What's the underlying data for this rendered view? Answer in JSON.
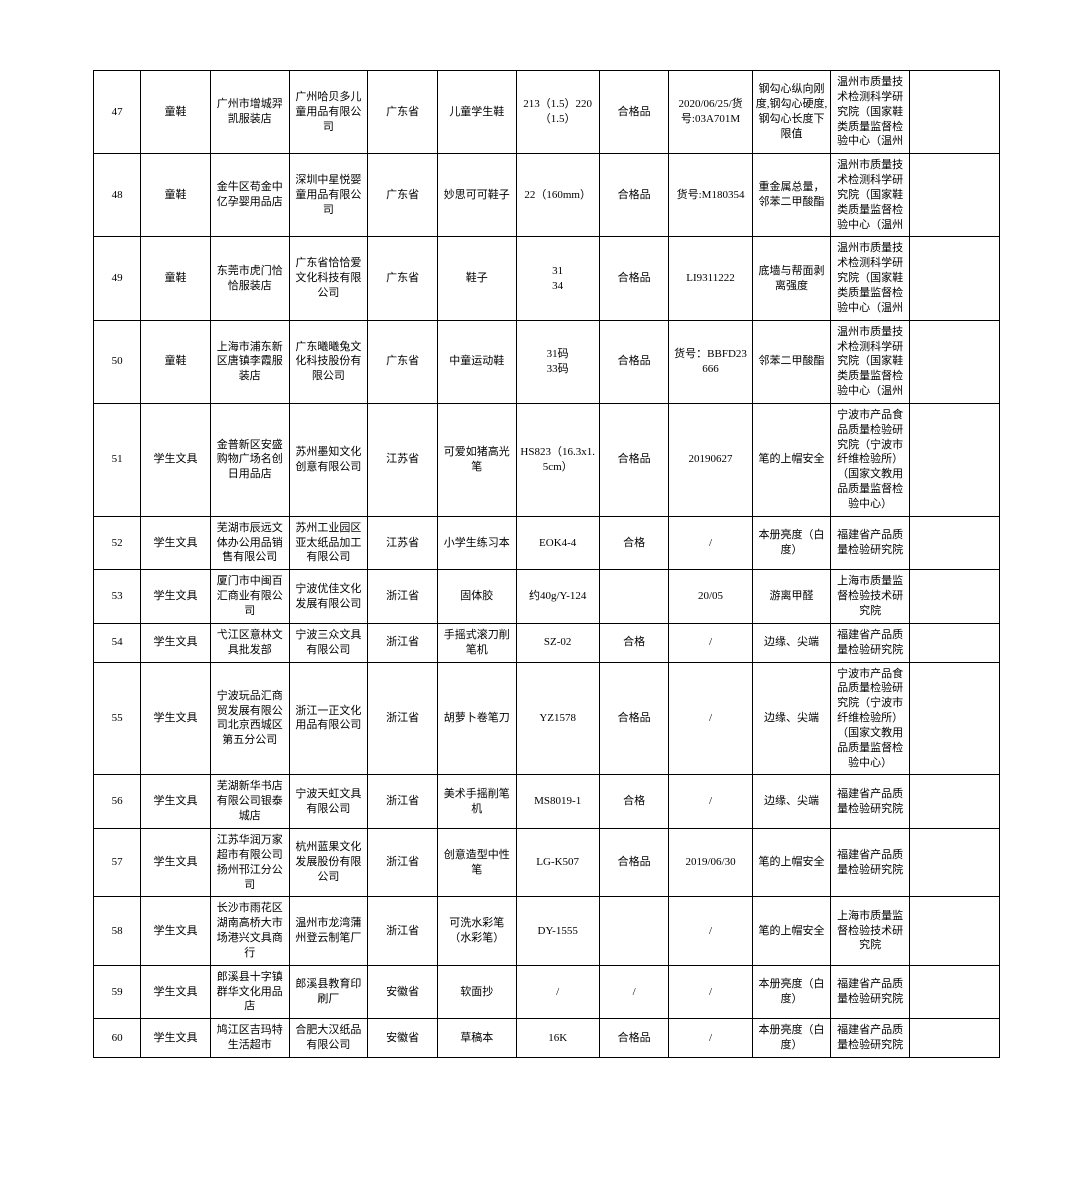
{
  "table": {
    "columns": 12,
    "border_color": "#000000",
    "background": "#ffffff",
    "font": "SimSun",
    "cell_font_size": 11,
    "rows": [
      {
        "no": "47",
        "cat": "童鞋",
        "seller": "广州市增城羿凯服装店",
        "maker": "广州哈贝多儿童用品有限公司",
        "prov": "广东省",
        "prod": "儿童学生鞋",
        "spec": "213（1.5）220（1.5）",
        "grade": "合格品",
        "batch": "2020/06/25/货号:03A701M",
        "item": "钢勾心纵向刚度,钢勾心硬度,钢勾心长度下限值",
        "lab": "温州市质量技术检测科学研究院（国家鞋类质量监督检验中心（温州",
        "extra": ""
      },
      {
        "no": "48",
        "cat": "童鞋",
        "seller": "金牛区苟金中亿孕婴用品店",
        "maker": "深圳中星悦婴童用品有限公司",
        "prov": "广东省",
        "prod": "妙思可可鞋子",
        "spec": "22（160mm）",
        "grade": "合格品",
        "batch": "货号:M180354",
        "item": "重金属总量，邻苯二甲酸酯",
        "lab": "温州市质量技术检测科学研究院（国家鞋类质量监督检验中心（温州",
        "extra": ""
      },
      {
        "no": "49",
        "cat": "童鞋",
        "seller": "东莞市虎门恰恰服装店",
        "maker": "广东省恰恰爱文化科技有限公司",
        "prov": "广东省",
        "prod": "鞋子",
        "spec": "31\n34",
        "grade": "合格品",
        "batch": "LI9311222",
        "item": "底墙与帮面剥离强度",
        "lab": "温州市质量技术检测科学研究院（国家鞋类质量监督检验中心（温州",
        "extra": ""
      },
      {
        "no": "50",
        "cat": "童鞋",
        "seller": "上海市浦东新区唐镇李霞服装店",
        "maker": "广东曦曦兔文化科技股份有限公司",
        "prov": "广东省",
        "prod": "中童运动鞋",
        "spec": "31码\n33码",
        "grade": "合格品",
        "batch": "货号：BBFD23666",
        "item": "邻苯二甲酸酯",
        "lab": "温州市质量技术检测科学研究院（国家鞋类质量监督检验中心（温州",
        "extra": ""
      },
      {
        "no": "51",
        "cat": "学生文具",
        "seller": "金普新区安盛购物广场名创日用品店",
        "maker": "苏州墨知文化创意有限公司",
        "prov": "江苏省",
        "prod": "可爱如猪高光笔",
        "spec": "HS823（16.3x1.5cm）",
        "grade": "合格品",
        "batch": "20190627",
        "item": "笔的上帽安全",
        "lab": "宁波市产品食品质量检验研究院（宁波市纤维检验所）（国家文教用品质量监督检验中心）",
        "extra": ""
      },
      {
        "no": "52",
        "cat": "学生文具",
        "seller": "芜湖市辰远文体办公用品销售有限公司",
        "maker": "苏州工业园区亚太纸品加工有限公司",
        "prov": "江苏省",
        "prod": "小学生练习本",
        "spec": "EOK4-4",
        "grade": "合格",
        "batch": "/",
        "item": "本册亮度（白度）",
        "lab": "福建省产品质量检验研究院",
        "extra": ""
      },
      {
        "no": "53",
        "cat": "学生文具",
        "seller": "厦门市中闽百汇商业有限公司",
        "maker": "宁波优佳文化发展有限公司",
        "prov": "浙江省",
        "prod": "固体胶",
        "spec": "约40g/Y-124",
        "grade": "",
        "batch": "20/05",
        "item": "游离甲醛",
        "lab": "上海市质量监督检验技术研究院",
        "extra": ""
      },
      {
        "no": "54",
        "cat": "学生文具",
        "seller": "弋江区意林文具批发部",
        "maker": "宁波三众文具有限公司",
        "prov": "浙江省",
        "prod": "手摇式滚刀削笔机",
        "spec": "SZ-02",
        "grade": "合格",
        "batch": "/",
        "item": "边缘、尖端",
        "lab": "福建省产品质量检验研究院",
        "extra": ""
      },
      {
        "no": "55",
        "cat": "学生文具",
        "seller": "宁波玩品汇商贸发展有限公司北京西城区第五分公司",
        "maker": "浙江一正文化用品有限公司",
        "prov": "浙江省",
        "prod": "胡萝卜卷笔刀",
        "spec": "YZ1578",
        "grade": "合格品",
        "batch": "/",
        "item": "边缘、尖端",
        "lab": "宁波市产品食品质量检验研究院（宁波市纤维检验所）（国家文教用品质量监督检验中心）",
        "extra": ""
      },
      {
        "no": "56",
        "cat": "学生文具",
        "seller": "芜湖新华书店有限公司银泰城店",
        "maker": "宁波天虹文具有限公司",
        "prov": "浙江省",
        "prod": "美术手摇削笔机",
        "spec": "MS8019-1",
        "grade": "合格",
        "batch": "/",
        "item": "边缘、尖端",
        "lab": "福建省产品质量检验研究院",
        "extra": ""
      },
      {
        "no": "57",
        "cat": "学生文具",
        "seller": "江苏华润万家超市有限公司扬州邗江分公司",
        "maker": "杭州蓝果文化发展股份有限公司",
        "prov": "浙江省",
        "prod": "创意造型中性笔",
        "spec": "LG-K507",
        "grade": "合格品",
        "batch": "2019/06/30",
        "item": "笔的上帽安全",
        "lab": "福建省产品质量检验研究院",
        "extra": ""
      },
      {
        "no": "58",
        "cat": "学生文具",
        "seller": "长沙市雨花区湖南高桥大市场港兴文具商行",
        "maker": "温州市龙湾蒲州登云制笔厂",
        "prov": "浙江省",
        "prod": "可洗水彩笔（水彩笔）",
        "spec": "DY-1555",
        "grade": "",
        "batch": "/",
        "item": "笔的上帽安全",
        "lab": "上海市质量监督检验技术研究院",
        "extra": ""
      },
      {
        "no": "59",
        "cat": "学生文具",
        "seller": "郎溪县十字镇群华文化用品店",
        "maker": "郎溪县教育印刷厂",
        "prov": "安徽省",
        "prod": "软面抄",
        "spec": "/",
        "grade": "/",
        "batch": "/",
        "item": "本册亮度（白度）",
        "lab": "福建省产品质量检验研究院",
        "extra": ""
      },
      {
        "no": "60",
        "cat": "学生文具",
        "seller": "鸠江区吉玛特生活超市",
        "maker": "合肥大汉纸品有限公司",
        "prov": "安徽省",
        "prod": "草稿本",
        "spec": "16K",
        "grade": "合格品",
        "batch": "/",
        "item": "本册亮度（白度）",
        "lab": "福建省产品质量检验研究院",
        "extra": ""
      }
    ]
  }
}
